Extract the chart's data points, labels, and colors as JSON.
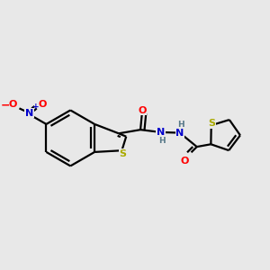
{
  "bg_color": "#e8e8e8",
  "bond_color": "#000000",
  "bond_width": 1.6,
  "atom_colors": {
    "O": "#ff0000",
    "N": "#0000cc",
    "S": "#aaaa00",
    "H": "#557788",
    "C": "#000000"
  },
  "font_size_main": 8.0,
  "font_size_small": 6.5,
  "figsize": [
    3.0,
    3.0
  ],
  "dpi": 100
}
